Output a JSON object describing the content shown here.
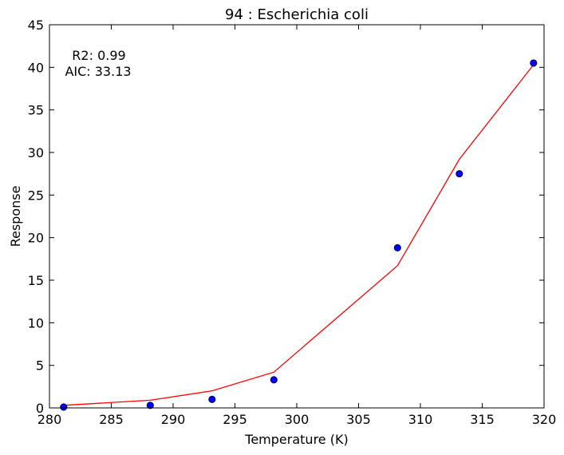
{
  "chart_data": {
    "type": "scatter",
    "title": "94 : Escherichia coli",
    "xlabel": "Temperature (K)",
    "ylabel": "Response",
    "xlim": [
      280,
      320
    ],
    "ylim": [
      0,
      45
    ],
    "x_ticks": [
      280,
      285,
      290,
      295,
      300,
      305,
      310,
      315,
      320
    ],
    "y_ticks": [
      0,
      5,
      10,
      15,
      20,
      25,
      30,
      35,
      40,
      45
    ],
    "grid": false,
    "annotations": [
      "R2: 0.99",
      "AIC: 33.13"
    ],
    "series": [
      {
        "kind": "points",
        "marker": "circle",
        "color": "#0000ff",
        "x": [
          281.15,
          288.15,
          293.15,
          298.15,
          308.15,
          313.15,
          319.15
        ],
        "y": [
          0.1,
          0.3,
          1.0,
          3.3,
          18.8,
          27.5,
          40.5
        ]
      },
      {
        "kind": "line",
        "color": "#ff0000",
        "x": [
          281.15,
          288.15,
          293.15,
          298.15,
          308.15,
          313.15,
          319.15
        ],
        "y": [
          0.3,
          0.9,
          2.0,
          4.2,
          16.7,
          29.2,
          40.3
        ]
      }
    ]
  }
}
